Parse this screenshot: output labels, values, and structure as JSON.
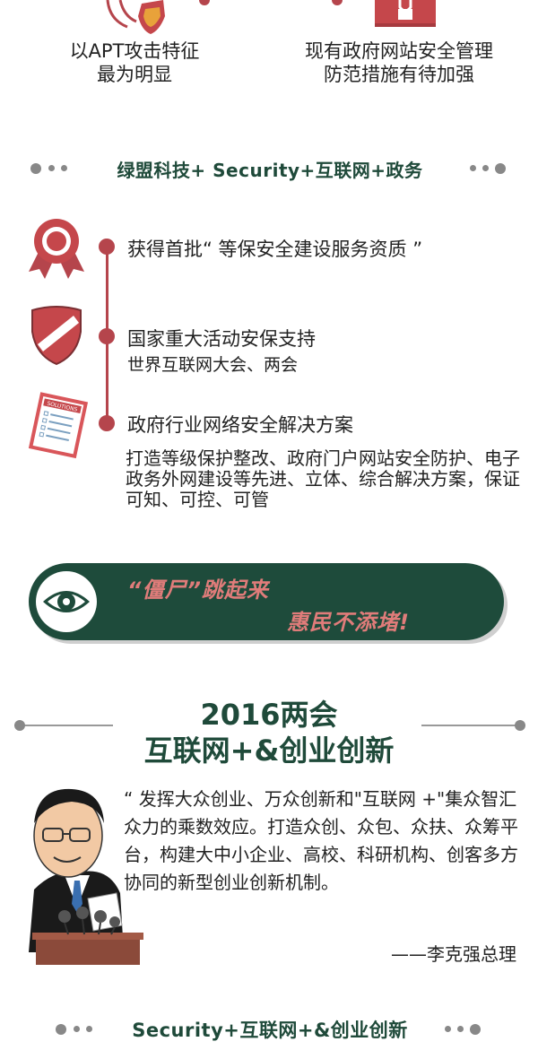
{
  "top": {
    "left_text_line1": "以APT攻击特征",
    "left_text_line2": "最为明显",
    "right_text_line1": "现有政府网站安全管理",
    "right_text_line2": "防范措施有待加强"
  },
  "section1": {
    "title": "绿盟科技+ Security+互联网+政务"
  },
  "timeline": [
    {
      "title": "获得首批“ 等保安全建设服务资质 ”",
      "sub": "",
      "icon": "award-ribbon-icon"
    },
    {
      "title": "国家重大活动安保支持",
      "sub": "世界互联网大会、两会",
      "icon": "shield-badge-icon"
    },
    {
      "title": "政府行业网络安全解决方案",
      "sub": "打造等级保护整改、政府门户网站安全防护、电子政务外网建设等先进、立体、综合解决方案，保证可知、可控、可管",
      "icon": "solutions-clipboard-icon",
      "icon_label": "SOLUTIONS"
    }
  ],
  "banner": {
    "line1": "“僵尸”跳起来",
    "line2": "惠民不添堵!",
    "icon": "eye-icon"
  },
  "section2": {
    "heading_line1": "2016两会",
    "heading_line2": "互联网+&创业创新",
    "quote": "“ 发挥大众创业、万众创新和\"互联网 +\"集众智汇众力的乘数效应。打造众创、众包、众扶、众筹平台，构建大中小企业、高校、科研机构、创客多方协同的新型创业创新机制。",
    "author": "——李克强总理"
  },
  "section3": {
    "title": "Security+互联网+&创业创新"
  },
  "colors": {
    "accent_red": "#b5454c",
    "dark_green": "#1e4b3b",
    "banner_text": "#e07c7a"
  }
}
